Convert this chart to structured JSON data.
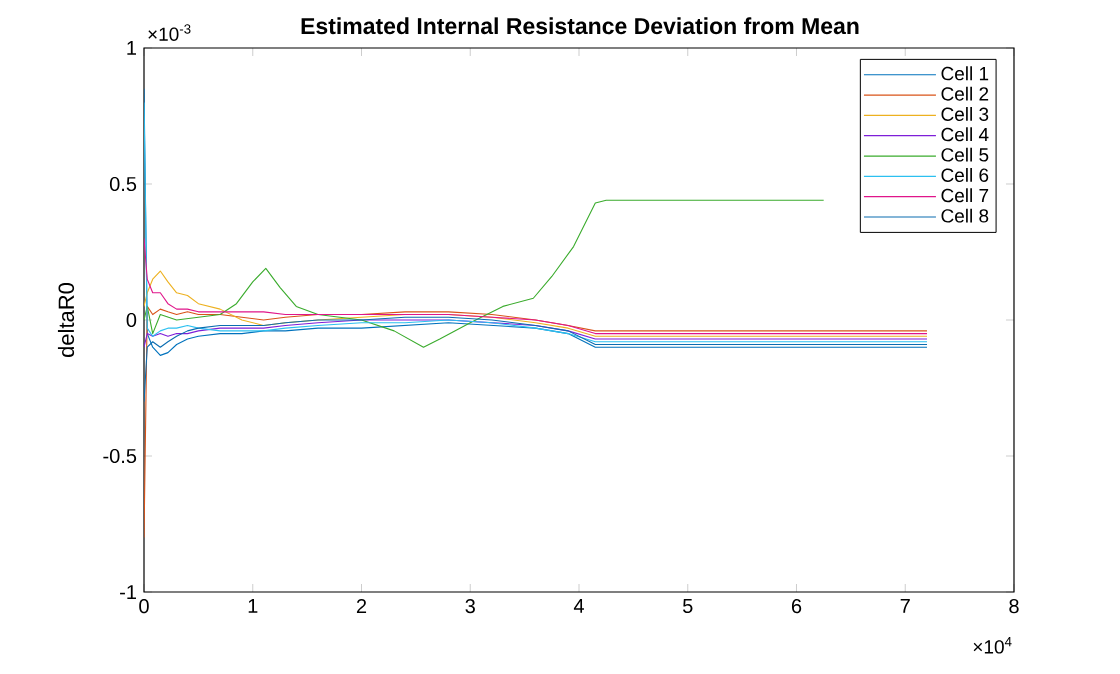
{
  "chart_data": {
    "type": "line",
    "title": "Estimated Internal Resistance Deviation from Mean",
    "ylabel": "deltaR0",
    "annotations": [
      "×10$^{-3}$",
      "×10$^{4}$"
    ],
    "xlim": [
      0,
      8
    ],
    "xticks": [
      0,
      1,
      2,
      3,
      4,
      5,
      6,
      7,
      8
    ],
    "ylim": [
      -1,
      1
    ],
    "yticks": [
      -1,
      -0.5,
      0,
      0.5,
      1
    ],
    "legend": "top right",
    "marker": "none",
    "line_style": "solid",
    "x": [
      0,
      0.03,
      0.08,
      0.15,
      0.22,
      0.3,
      0.4,
      0.5,
      0.7,
      0.9,
      1.1,
      1.3,
      1.6,
      2,
      2.4,
      2.8,
      3.2,
      3.6,
      3.9,
      4.15,
      5,
      6,
      7.2
    ],
    "series": [
      {
        "name": "Cell 1",
        "color": "#0072bd",
        "values": [
          0.85,
          -0.05,
          -0.1,
          -0.13,
          -0.12,
          -0.09,
          -0.07,
          -0.06,
          -0.05,
          -0.05,
          -0.04,
          -0.04,
          -0.03,
          -0.03,
          -0.02,
          -0.01,
          -0.02,
          -0.03,
          -0.05,
          -0.1,
          -0.1,
          -0.1,
          -0.1
        ]
      },
      {
        "name": "Cell 2",
        "color": "#d95319",
        "values": [
          -0.8,
          0.05,
          0.02,
          0.04,
          0.03,
          0.02,
          0.03,
          0.02,
          0.02,
          0.01,
          0,
          0.01,
          0.02,
          0.02,
          0.03,
          0.03,
          0.02,
          0,
          -0.02,
          -0.04,
          -0.04,
          -0.04,
          -0.04
        ]
      },
      {
        "name": "Cell 3",
        "color": "#edb120",
        "values": [
          0.05,
          0.1,
          0.15,
          0.18,
          0.14,
          0.1,
          0.09,
          0.06,
          0.04,
          0,
          -0.02,
          -0.01,
          0,
          0.01,
          0.02,
          0.02,
          0.01,
          -0.01,
          -0.03,
          -0.06,
          -0.06,
          -0.06,
          -0.06
        ]
      },
      {
        "name": "Cell 4",
        "color": "#7e1fd8",
        "values": [
          -0.1,
          -0.05,
          -0.06,
          -0.05,
          -0.06,
          -0.05,
          -0.05,
          -0.04,
          -0.03,
          -0.03,
          -0.03,
          -0.02,
          -0.01,
          0,
          0,
          0,
          -0.01,
          -0.02,
          -0.04,
          -0.07,
          -0.07,
          -0.07,
          -0.07
        ]
      },
      {
        "name": "Cell 5",
        "color": "#3aab2c",
        "x": [
          0,
          0.03,
          0.08,
          0.15,
          0.3,
          0.5,
          0.7,
          0.85,
          1,
          1.12,
          1.25,
          1.4,
          1.6,
          2,
          2.3,
          2.57,
          2.72,
          3,
          3.3,
          3.58,
          3.75,
          3.95,
          4.15,
          4.25,
          5,
          6.25
        ],
        "values": [
          0,
          0.05,
          -0.05,
          0.02,
          0,
          0.01,
          0.02,
          0.06,
          0.14,
          0.19,
          0.12,
          0.05,
          0.02,
          0,
          -0.04,
          -0.1,
          -0.07,
          -0.01,
          0.05,
          0.08,
          0.16,
          0.27,
          0.43,
          0.44,
          0.44,
          0.44
        ]
      },
      {
        "name": "Cell 6",
        "color": "#2cc0f0",
        "values": [
          0.8,
          -0.03,
          -0.06,
          -0.04,
          -0.03,
          -0.03,
          -0.02,
          -0.03,
          -0.04,
          -0.04,
          -0.04,
          -0.03,
          -0.02,
          -0.01,
          -0.01,
          0,
          -0.01,
          -0.03,
          -0.05,
          -0.08,
          -0.08,
          -0.08,
          -0.08
        ]
      },
      {
        "name": "Cell 7",
        "color": "#e0158a",
        "values": [
          0.3,
          0.15,
          0.1,
          0.1,
          0.06,
          0.04,
          0.04,
          0.03,
          0.03,
          0.03,
          0.03,
          0.02,
          0.02,
          0.02,
          0.02,
          0.02,
          0.01,
          0,
          -0.02,
          -0.05,
          -0.05,
          -0.05,
          -0.05
        ]
      },
      {
        "name": "Cell 8",
        "color": "#0a6cb0",
        "values": [
          -0.3,
          -0.1,
          -0.08,
          -0.1,
          -0.08,
          -0.06,
          -0.04,
          -0.03,
          -0.02,
          -0.02,
          -0.02,
          -0.01,
          0,
          0,
          0.01,
          0.01,
          0,
          -0.02,
          -0.04,
          -0.09,
          -0.09,
          -0.09,
          -0.09
        ]
      }
    ]
  }
}
